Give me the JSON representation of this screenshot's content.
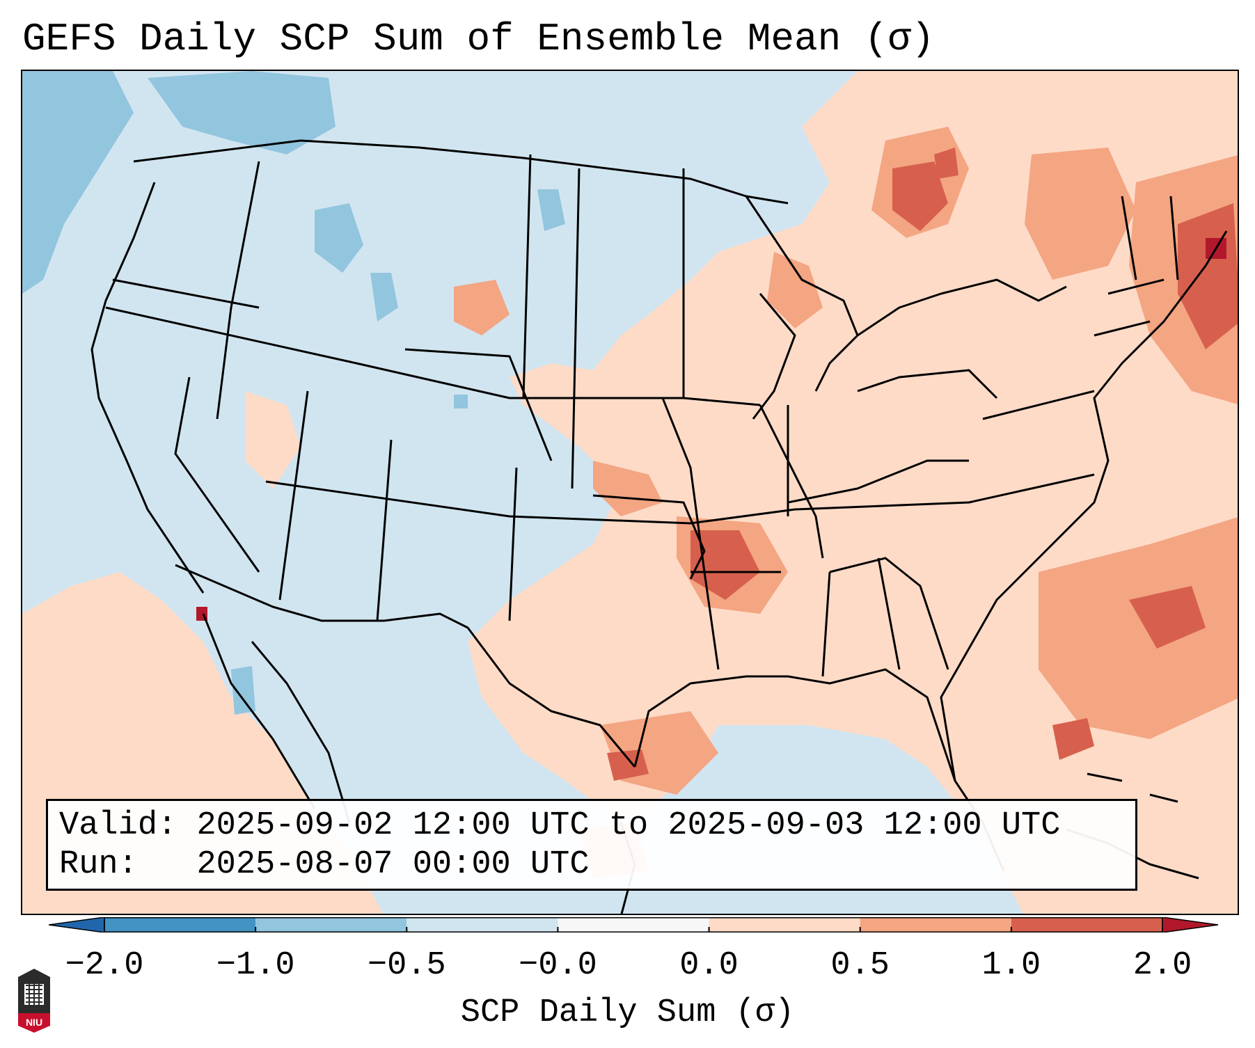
{
  "title": "GEFS Daily SCP Sum of Ensemble Mean (σ)",
  "info": {
    "valid_label": "Valid:",
    "valid_value": "2025-09-02 12:00 UTC to 2025-09-03 12:00 UTC",
    "run_label": "Run:",
    "run_value": "2025-08-07 00:00 UTC"
  },
  "colorbar": {
    "label": "SCP Daily Sum (σ)",
    "ticks": [
      "−2.0",
      "−1.0",
      "−0.5",
      "−0.0",
      "0.0",
      "0.5",
      "1.0",
      "2.0"
    ],
    "bins": [
      {
        "from": -2.0,
        "to": -1.0,
        "color": "#4393c3"
      },
      {
        "from": -1.0,
        "to": -0.5,
        "color": "#92c5de"
      },
      {
        "from": -0.5,
        "to": -0.0,
        "color": "#d1e5f0"
      },
      {
        "from": -0.0,
        "to": 0.0,
        "color": "#f7f7f7"
      },
      {
        "from": 0.0,
        "to": 0.5,
        "color": "#fddbc7"
      },
      {
        "from": 0.5,
        "to": 1.0,
        "color": "#f4a582"
      },
      {
        "from": 1.0,
        "to": 2.0,
        "color": "#d6604d"
      }
    ],
    "under_color": "#2166ac",
    "over_color": "#b2182b"
  },
  "map": {
    "region": "Continental United States",
    "background_color": "#d1e5f0",
    "border_color": "#000000"
  },
  "logo": {
    "text": "NIU",
    "color": "#c8102e"
  }
}
